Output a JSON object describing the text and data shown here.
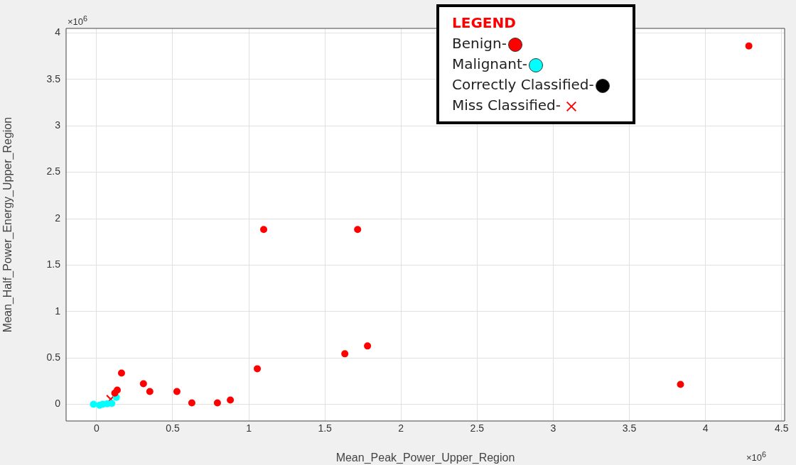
{
  "chart_data": {
    "type": "scatter",
    "xlabel": "Mean_Peak_Power_Upper_Region",
    "ylabel": "Mean_Half_Power_Energy_Upper_Region",
    "legend_title": "LEGEND",
    "legend": "top right",
    "grid": true,
    "annotations": [
      "×10$^{6}$",
      "×10$^{6}$",
      "Correctly Classified-"
    ],
    "xlim": [
      -0.2,
      4.52
    ],
    "ylim": [
      -0.18,
      4.05
    ],
    "xticks": [
      0,
      0.5,
      1,
      1.5,
      2,
      2.5,
      3,
      3.5,
      4,
      4.5
    ],
    "yticks": [
      0,
      0.5,
      1,
      1.5,
      2,
      2.5,
      3,
      3.5,
      4
    ],
    "series": [
      {
        "name": "Benign-",
        "color": "#ff0000",
        "marker": "circle",
        "x": [
          4.285,
          1.098,
          1.715,
          1.631,
          1.78,
          1.056,
          3.836,
          0.164,
          0.308,
          0.35,
          0.528,
          0.626,
          0.794,
          0.879,
          0.136,
          0.12
        ],
        "values": [
          3.86,
          1.884,
          1.884,
          0.544,
          0.628,
          0.383,
          0.214,
          0.337,
          0.222,
          0.138,
          0.138,
          0.015,
          0.015,
          0.046,
          0.153,
          0.12
        ]
      },
      {
        "name": "Malignant-",
        "color": "#00ffff",
        "marker": "circle",
        "x": [
          -0.02,
          0.005,
          0.02,
          0.04,
          0.07,
          0.1,
          0.13
        ],
        "values": [
          0,
          null,
          -0.01,
          0,
          0.005,
          0.01,
          0.075
        ]
      },
      {
        "name": "Miss Classified-",
        "color": "#ff0000",
        "marker": "cross",
        "x": [
          0.093
        ],
        "values": [
          0.054
        ]
      }
    ]
  }
}
